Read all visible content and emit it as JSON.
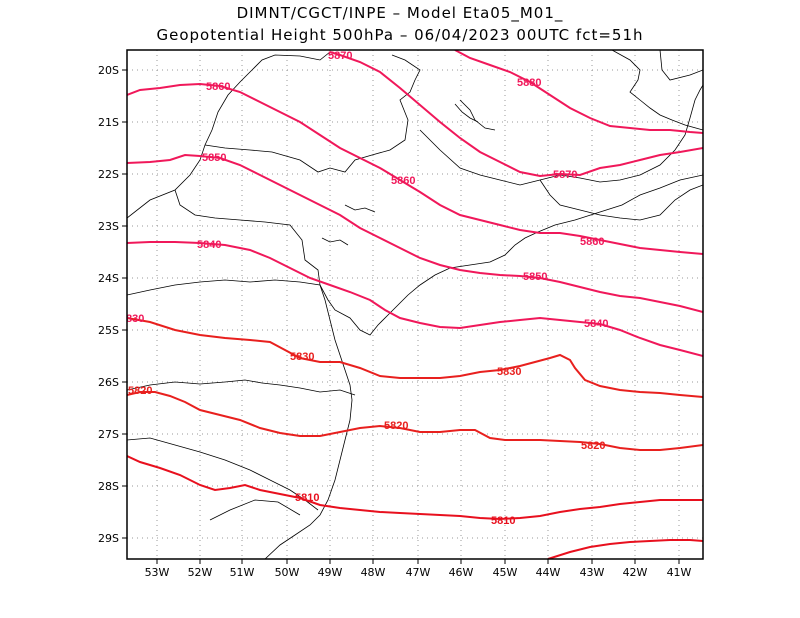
{
  "title": {
    "line1": "DIMNT/CGCT/INPE –  Model Eta05_M01_",
    "line2": "Geopotential Height 500hPa –  06/04/2023 00UTC fct=51h"
  },
  "colors": {
    "contour_high": "#f0185a",
    "contour_low": "#e8101e",
    "coast": "#000000",
    "grid": "#9a9a9a"
  },
  "axes": {
    "lon_labels": [
      "53W",
      "52W",
      "51W",
      "50W",
      "49W",
      "48W",
      "47W",
      "46W",
      "45W",
      "44W",
      "43W",
      "42W",
      "41W"
    ],
    "lat_labels": [
      "20S",
      "21S",
      "22S",
      "23S",
      "24S",
      "25S",
      "26S",
      "27S",
      "28S",
      "29S"
    ]
  },
  "contour_labels": [
    "5870",
    "5880",
    "5860",
    "5850",
    "5860",
    "5870",
    "5840",
    "5860",
    "5850",
    "830",
    "5840",
    "5830",
    "5830",
    "5820",
    "5820",
    "5820",
    "5810",
    "5810"
  ]
}
